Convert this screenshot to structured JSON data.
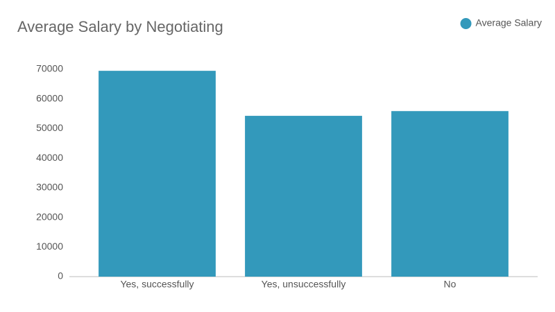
{
  "chart_data": {
    "type": "bar",
    "title": "Average Salary by Negotiating",
    "categories": [
      "Yes, successfully",
      "Yes, unsuccessfully",
      "No"
    ],
    "series": [
      {
        "name": "Average Salary",
        "color": "#3399bb",
        "values": [
          69500,
          54300,
          55900
        ]
      }
    ],
    "ylim": [
      0,
      70000
    ],
    "yticks": [
      0,
      10000,
      20000,
      30000,
      40000,
      50000,
      60000,
      70000
    ],
    "grid": false,
    "legend": "top-right"
  }
}
